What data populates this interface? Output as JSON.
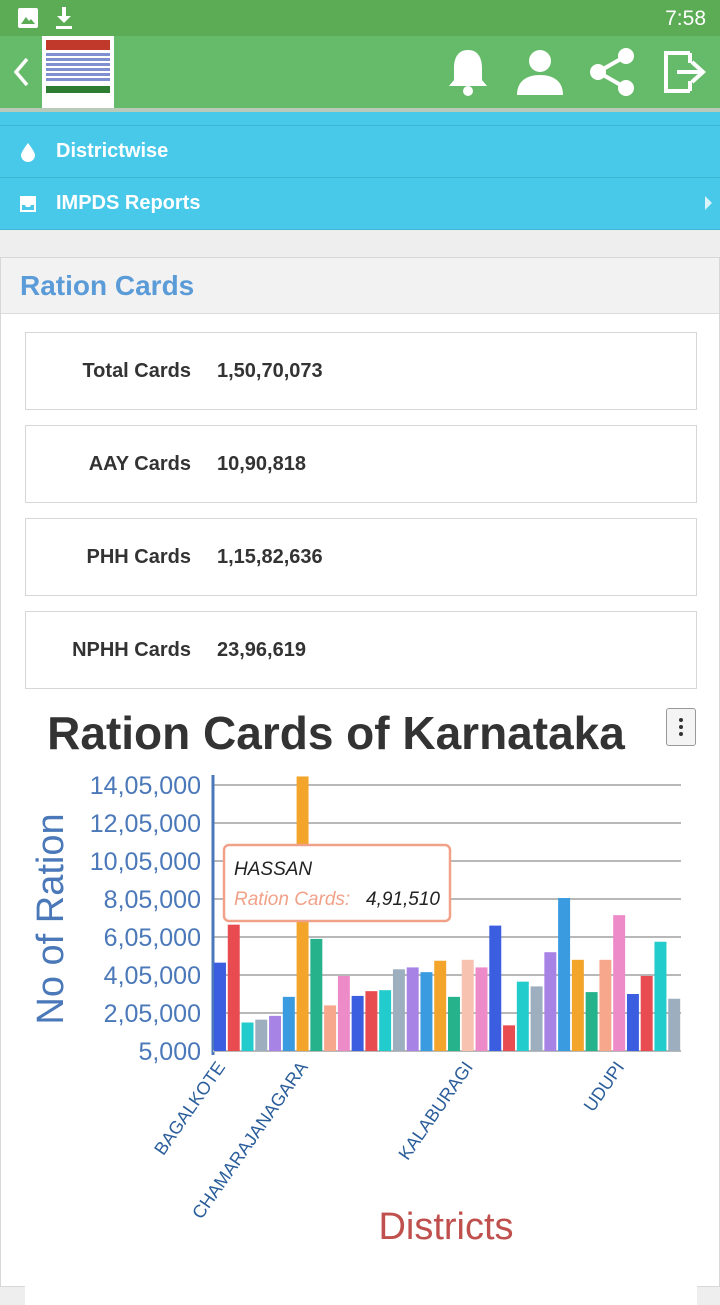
{
  "status_bar": {
    "time": "7:58",
    "icons": [
      "image-icon",
      "download-icon"
    ]
  },
  "app_bar": {
    "icons": [
      "back-icon",
      "app-logo",
      "bell-icon",
      "user-icon",
      "share-icon",
      "logout-icon"
    ]
  },
  "menu": {
    "items": [
      {
        "label": "Districtwise",
        "icon": "drop-icon"
      },
      {
        "label": "IMPDS Reports",
        "icon": "inbox-icon"
      }
    ]
  },
  "panel": {
    "title": "Ration Cards",
    "stats": [
      {
        "label": "Total Cards",
        "value": "1,50,70,073"
      },
      {
        "label": "AAY Cards",
        "value": "10,90,818"
      },
      {
        "label": "PHH Cards",
        "value": "1,15,82,636"
      },
      {
        "label": "NPHH Cards",
        "value": "23,96,619"
      }
    ]
  },
  "chart_data": {
    "type": "bar",
    "title": "Ration Cards of Karnataka",
    "xlabel": "Districts",
    "ylabel": "No of Ration",
    "legend": "Ration Cards",
    "ylim": [
      5000,
      1405000
    ],
    "yticks": [
      "5,000",
      "2,05,000",
      "4,05,000",
      "6,05,000",
      "8,05,000",
      "10,05,000",
      "12,05,000",
      "14,05,000"
    ],
    "xtick_labels": [
      {
        "label": "BAGALKOTE",
        "index": 0
      },
      {
        "label": "CHAMARAJANAGARA",
        "index": 6
      },
      {
        "label": "KALABURAGI",
        "index": 18
      },
      {
        "label": "UDUPI",
        "index": 29
      }
    ],
    "values": [
      470000,
      670000,
      155000,
      170000,
      190000,
      290000,
      1450000,
      595000,
      245000,
      400000,
      295000,
      320000,
      325000,
      435000,
      445000,
      420000,
      480000,
      290000,
      485000,
      445000,
      665000,
      140000,
      370000,
      345000,
      525000,
      810000,
      485000,
      315000,
      485000,
      720000,
      305000,
      400000,
      580000,
      280000
    ],
    "colors": [
      "#3b5ee0",
      "#e84c51",
      "#22cccc",
      "#9daebf",
      "#a883e6",
      "#3a9be0",
      "#f2a52a",
      "#26b28a",
      "#f7a78c",
      "#ec8bc8",
      "#3b5ee0",
      "#e84c51",
      "#22cccc",
      "#9daebf",
      "#a883e6",
      "#3a9be0",
      "#f2a52a",
      "#26b28a",
      "#f7c2b0",
      "#ec8bc8",
      "#3b5ee0",
      "#e84c51",
      "#22cccc",
      "#9daebf",
      "#a883e6",
      "#3a9be0",
      "#f2a52a",
      "#26b28a",
      "#f7a78c",
      "#ec8bc8",
      "#3b5ee0",
      "#e84c51",
      "#22cccc",
      "#9daebf"
    ],
    "tooltip": {
      "district": "HASSAN",
      "series": "Ration Cards:",
      "value": "4,91,510"
    },
    "title_color": "#333333",
    "axis_color": "#4a78b8",
    "xlabel_color": "#c0504d",
    "tooltip_border": "#f2a189"
  }
}
